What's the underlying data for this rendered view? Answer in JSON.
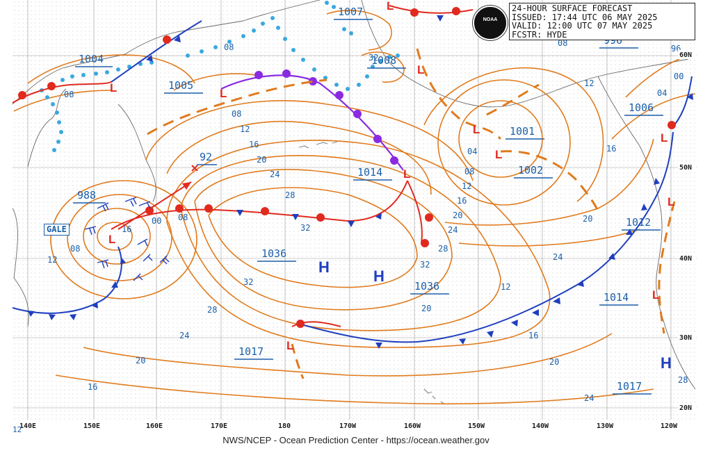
{
  "header": {
    "line1": "24-HOUR SURFACE FORECAST",
    "line2": "ISSUED: 17:44 UTC 06 MAY 2025",
    "line3": "VALID:  12:00 UTC 07 MAY 2025",
    "line4": "FCSTR:  HYDE"
  },
  "logo_text": "NOAA",
  "footer": "NWS/NCEP - Ocean Prediction Center - https://ocean.weather.gov",
  "gale_label": "GALE",
  "credit": "12",
  "longitude_labels": [
    "140E",
    "150E",
    "160E",
    "170E",
    "180",
    "170W",
    "160W",
    "150W",
    "140W",
    "130W",
    "120W"
  ],
  "latitude_labels": [
    "60N",
    "50N",
    "40N",
    "30N",
    "20N"
  ],
  "pressure_boxes": [
    "1004",
    "1005",
    "1007",
    "1008",
    "1001",
    "1002",
    "1006",
    "988",
    "92",
    "1014",
    "1036",
    "1036",
    "1017",
    "1012",
    "1014",
    "1017",
    "996"
  ],
  "isobar_labels": [
    "08",
    "08",
    "08",
    "12",
    "16",
    "20",
    "24",
    "28",
    "32",
    "32",
    "28",
    "24",
    "20",
    "16",
    "12",
    "08",
    "04",
    "08",
    "12",
    "16",
    "20",
    "24",
    "28",
    "32",
    "24",
    "20",
    "16",
    "12",
    "08",
    "04",
    "00",
    "96",
    "00",
    "08",
    "12",
    "16",
    "20",
    "24",
    "28",
    "32",
    "20",
    "16",
    "12",
    "92",
    "00",
    "08"
  ],
  "low_symbol": "L",
  "high_symbol": "H",
  "colors": {
    "isobar": "#e07a1c",
    "cold_front": "#1f3fbf",
    "warm_front": "#e02a1f",
    "occluded": "#8a2be2",
    "ice_edge": "#3aa8e0",
    "label_blue": "#1b5fa8"
  }
}
